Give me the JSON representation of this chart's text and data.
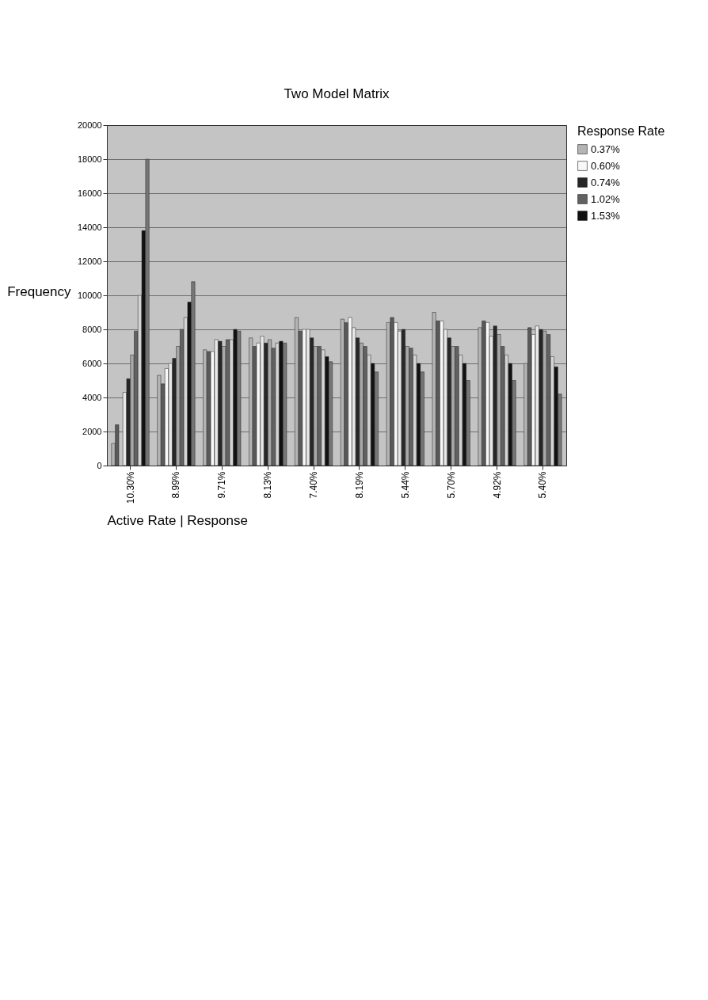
{
  "chart_data": {
    "type": "bar",
    "title": "Two Model Matrix",
    "xlabel": "Active Rate | Response",
    "ylabel": "Frequency",
    "legend_title": "Response Rate",
    "categories": [
      "10.30%",
      "8.99%",
      "9.71%",
      "8.13%",
      "7.40%",
      "8.19%",
      "5.44%",
      "5.70%",
      "4.92%",
      "5.40%"
    ],
    "series": [
      {
        "name": "0.37%",
        "color": "#b4b4b4",
        "values": [
          1300,
          5300,
          6800,
          7500,
          8700,
          8600,
          8400,
          9000,
          8100,
          6000
        ]
      },
      {
        "color": "#5a5a5a",
        "values": [
          2400,
          4800,
          6700,
          7000,
          7900,
          8400,
          8700,
          8500,
          8500,
          8100
        ]
      },
      {
        "name": "0.60%",
        "color": "#f8f8f8",
        "values": [
          null,
          5700,
          6700,
          7200,
          8000,
          8700,
          8400,
          8500,
          8400,
          7700
        ]
      },
      {
        "color": "#e8e8e8",
        "values": [
          4300,
          6000,
          7400,
          7600,
          8000,
          8100,
          7900,
          8000,
          7600,
          8200
        ]
      },
      {
        "name": "0.74%",
        "color": "#262626",
        "values": [
          5100,
          6300,
          7300,
          7200,
          7500,
          7500,
          8000,
          7500,
          8200,
          8000
        ]
      },
      {
        "color": "#a8a8a8",
        "values": [
          6500,
          7000,
          7000,
          7400,
          7000,
          7200,
          7000,
          7000,
          7700,
          7900
        ]
      },
      {
        "name": "1.02%",
        "color": "#626262",
        "values": [
          7900,
          8000,
          7400,
          6900,
          7000,
          7000,
          6900,
          7000,
          7000,
          7700
        ]
      },
      {
        "color": "#d4d4d4",
        "values": [
          10000,
          8700,
          7400,
          7200,
          6800,
          6500,
          6500,
          6500,
          6500,
          6400
        ]
      },
      {
        "name": "1.53%",
        "color": "#111111",
        "values": [
          13800,
          9600,
          8000,
          7300,
          6400,
          6000,
          6000,
          6000,
          6000,
          5800
        ]
      },
      {
        "color": "#767676",
        "values": [
          18000,
          10800,
          7900,
          7200,
          6100,
          5500,
          5500,
          5000,
          5000,
          4200
        ]
      }
    ],
    "ylim": [
      0,
      20000
    ],
    "yticks": [
      0,
      2000,
      4000,
      6000,
      8000,
      10000,
      12000,
      14000,
      16000,
      18000,
      20000
    ],
    "grid": "y",
    "legend": "right"
  }
}
